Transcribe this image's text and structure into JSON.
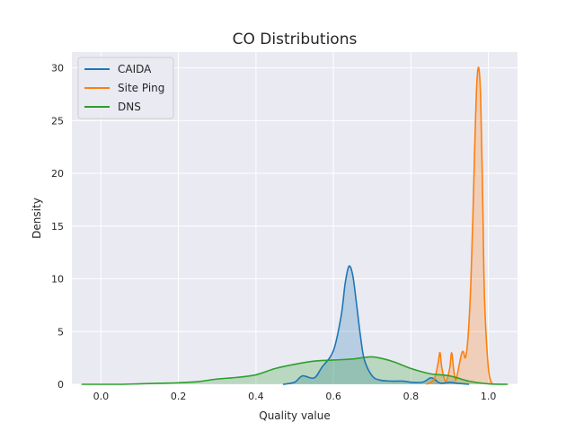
{
  "chart_data": {
    "type": "area",
    "title": "CO Distributions",
    "xlabel": "Quality value",
    "ylabel": "Density",
    "xlim": [
      -0.075,
      1.075
    ],
    "ylim": [
      0,
      31.5
    ],
    "xticks": [
      0.0,
      0.2,
      0.4,
      0.6,
      0.8,
      1.0
    ],
    "xtick_labels": [
      "0.0",
      "0.2",
      "0.4",
      "0.6",
      "0.8",
      "1.0"
    ],
    "yticks": [
      0,
      5,
      10,
      15,
      20,
      25,
      30
    ],
    "ytick_labels": [
      "0",
      "5",
      "10",
      "15",
      "20",
      "25",
      "30"
    ],
    "grid": true,
    "legend_position": "top-left",
    "series": [
      {
        "name": "CAIDA",
        "color": "#1f77b4",
        "x": [
          0.47,
          0.5,
          0.52,
          0.55,
          0.57,
          0.6,
          0.62,
          0.63,
          0.64,
          0.65,
          0.66,
          0.67,
          0.68,
          0.7,
          0.72,
          0.75,
          0.78,
          0.8,
          0.83,
          0.85,
          0.86,
          0.87,
          0.88,
          0.9,
          0.92,
          0.95
        ],
        "y": [
          0.0,
          0.2,
          0.8,
          0.6,
          1.6,
          3.2,
          6.5,
          9.5,
          11.2,
          10.3,
          7.5,
          4.5,
          2.3,
          0.8,
          0.4,
          0.3,
          0.3,
          0.2,
          0.2,
          0.6,
          0.5,
          0.2,
          0.1,
          0.2,
          0.1,
          0.0
        ]
      },
      {
        "name": "Site Ping",
        "color": "#ff7f0e",
        "x": [
          0.84,
          0.86,
          0.87,
          0.875,
          0.88,
          0.89,
          0.9,
          0.905,
          0.91,
          0.915,
          0.92,
          0.93,
          0.935,
          0.94,
          0.945,
          0.95,
          0.955,
          0.96,
          0.965,
          0.97,
          0.975,
          0.98,
          0.985,
          0.99,
          1.0,
          1.01
        ],
        "y": [
          0.0,
          0.5,
          2.0,
          3.0,
          1.5,
          0.3,
          1.5,
          3.0,
          1.5,
          0.4,
          1.0,
          2.8,
          3.1,
          2.5,
          3.5,
          6.0,
          10.0,
          16.0,
          23.0,
          28.5,
          30.0,
          27.0,
          18.0,
          8.0,
          1.5,
          0.0
        ]
      },
      {
        "name": "DNS",
        "color": "#2ca02c",
        "x": [
          -0.05,
          0.0,
          0.05,
          0.1,
          0.15,
          0.2,
          0.25,
          0.3,
          0.35,
          0.4,
          0.45,
          0.5,
          0.55,
          0.6,
          0.65,
          0.7,
          0.75,
          0.8,
          0.85,
          0.9,
          0.95,
          1.0,
          1.05
        ],
        "y": [
          0.0,
          0.0,
          0.0,
          0.05,
          0.1,
          0.15,
          0.25,
          0.5,
          0.65,
          0.9,
          1.5,
          1.9,
          2.2,
          2.3,
          2.4,
          2.6,
          2.2,
          1.5,
          1.0,
          0.8,
          0.3,
          0.05,
          0.0
        ]
      }
    ]
  }
}
